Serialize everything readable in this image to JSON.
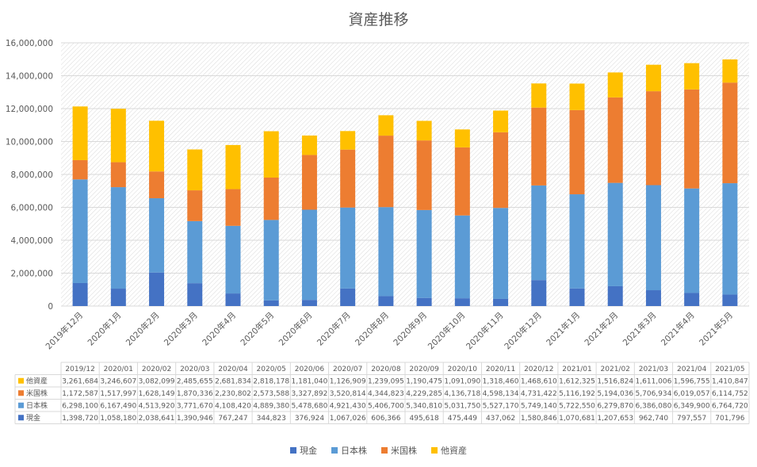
{
  "chart_data": {
    "type": "bar",
    "stacked": true,
    "title": "資産推移",
    "categories": [
      "2019年12月",
      "2020年1月",
      "2020年2月",
      "2020年3月",
      "2020年4月",
      "2020年5月",
      "2020年6月",
      "2020年7月",
      "2020年8月",
      "2020年9月",
      "2020年10月",
      "2020年11月",
      "2020年12月",
      "2021年1月",
      "2021年2月",
      "2021年3月",
      "2021年4月",
      "2021年5月"
    ],
    "table_headers": [
      "2019/12",
      "2020/01",
      "2020/02",
      "2020/03",
      "2020/04",
      "2020/05",
      "2020/06",
      "2020/07",
      "2020/08",
      "2020/09",
      "2020/10",
      "2020/11",
      "2020/12",
      "2021/01",
      "2021/02",
      "2021/03",
      "2021/04",
      "2021/05"
    ],
    "ylim": [
      0,
      16000000
    ],
    "y_ticks": [
      "0",
      "2,000,000",
      "4,000,000",
      "6,000,000",
      "8,000,000",
      "10,000,000",
      "12,000,000",
      "14,000,000",
      "16,000,000"
    ],
    "grid": true,
    "legend_position": "bottom",
    "series": [
      {
        "name": "現金",
        "color": "#4472C4",
        "values": [
          1398720,
          1058180,
          2038641,
          1390946,
          767247,
          344823,
          376924,
          1067026,
          606366,
          495618,
          475449,
          437062,
          1580846,
          1070681,
          1207653,
          962740,
          797557,
          701796
        ]
      },
      {
        "name": "日本株",
        "color": "#5B9BD5",
        "values": [
          6298100,
          6167490,
          4513920,
          3771670,
          4108420,
          4889380,
          5478680,
          4921430,
          5406700,
          5340810,
          5031750,
          5527170,
          5749140,
          5722550,
          6279870,
          6386080,
          6349900,
          6764720
        ]
      },
      {
        "name": "米国株",
        "color": "#ED7D31",
        "values": [
          1172587,
          1517997,
          1628149,
          1870336,
          2230802,
          2573588,
          3327892,
          3520814,
          4344823,
          4229285,
          4136718,
          4598134,
          4731422,
          5116192,
          5194036,
          5706934,
          6019057,
          6114752
        ]
      },
      {
        "name": "他資産",
        "color": "#FFC000",
        "values": [
          3261684,
          3246607,
          3082099,
          2485655,
          2681834,
          2818178,
          1181040,
          1126909,
          1239095,
          1190475,
          1091090,
          1318460,
          1468610,
          1612325,
          1516824,
          1611006,
          1596755,
          1410847
        ]
      }
    ],
    "table_values": [
      [
        "1,398,720",
        "1,058,180",
        "2,038,641",
        "1,390,946",
        "767,247",
        "344,823",
        "376,924",
        "1,067,026",
        "606,366",
        "495,618",
        "475,449",
        "437,062",
        "1,580,846",
        "1,070,681",
        "1,207,653",
        "962,740",
        "797,557",
        "701,796"
      ],
      [
        "6,298,100",
        "6,167,490",
        "4,513,920",
        "3,771,670",
        "4,108,420",
        "4,889,380",
        "5,478,680",
        "4,921,430",
        "5,406,700",
        "5,340,810",
        "5,031,750",
        "5,527,170",
        "5,749,140",
        "5,722,550",
        "6,279,870",
        "6,386,080",
        "6,349,900",
        "6,764,720"
      ],
      [
        "1,172,587",
        "1,517,997",
        "1,628,149",
        "1,870,336",
        "2,230,802",
        "2,573,588",
        "3,327,892",
        "3,520,814",
        "4,344,823",
        "4,229,285",
        "4,136,718",
        "4,598,134",
        "4,731,422",
        "5,116,192",
        "5,194,036",
        "5,706,934",
        "6,019,057",
        "6,114,752"
      ],
      [
        "3,261,684",
        "3,246,607",
        "3,082,099",
        "2,485,655",
        "2,681,834",
        "2,818,178",
        "1,181,040",
        "1,126,909",
        "1,239,095",
        "1,190,475",
        "1,091,090",
        "1,318,460",
        "1,468,610",
        "1,612,325",
        "1,516,824",
        "1,611,006",
        "1,596,755",
        "1,410,847"
      ]
    ]
  }
}
